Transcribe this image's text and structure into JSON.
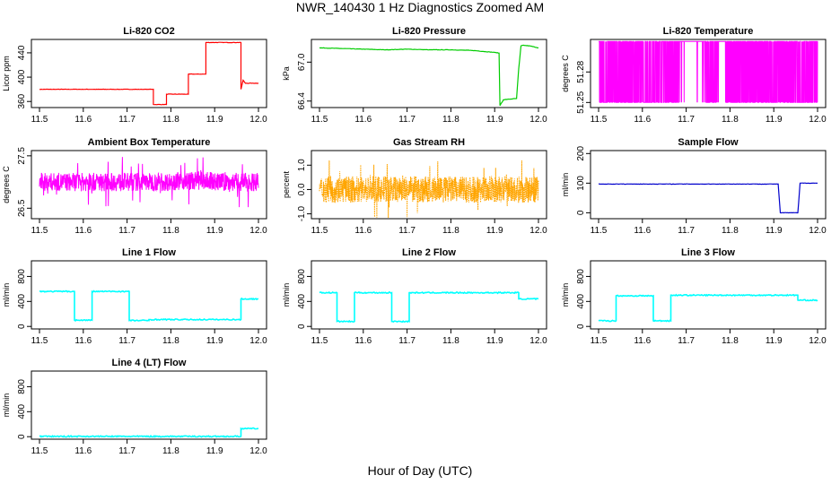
{
  "page": {
    "title": "NWR_140430  1 Hz Diagnostics Zoomed AM",
    "xlabel": "Hour of Day (UTC)"
  },
  "chart_data": [
    {
      "type": "line",
      "title": "Li-820 CO2",
      "ylabel": "Licor ppm",
      "xlim": [
        11.5,
        12.0
      ],
      "ylim": [
        350,
        462
      ],
      "xticks": [
        "11.5",
        "11.6",
        "11.7",
        "11.8",
        "11.9",
        "12.0"
      ],
      "yticks": [
        "360",
        "400",
        "440"
      ],
      "color": "#ff0000",
      "series": [
        {
          "x": [
            11.5,
            11.76,
            11.76,
            11.79,
            11.79,
            11.84,
            11.84,
            11.88,
            11.88,
            11.96,
            11.96,
            11.965,
            11.97,
            12.0
          ],
          "y": [
            380,
            380,
            355,
            355,
            372,
            372,
            405,
            405,
            457,
            457,
            380,
            395,
            390,
            390
          ]
        }
      ]
    },
    {
      "type": "line",
      "title": "Li-820 Pressure",
      "ylabel": "kPa",
      "xlim": [
        11.5,
        12.0
      ],
      "ylim": [
        66.3,
        67.35
      ],
      "xticks": [
        "11.5",
        "11.6",
        "11.7",
        "11.8",
        "11.9",
        "12.0"
      ],
      "yticks": [
        "66.4",
        "67.0"
      ],
      "color": "#00cc00",
      "series": [
        {
          "x": [
            11.5,
            11.55,
            11.6,
            11.65,
            11.7,
            11.75,
            11.8,
            11.85,
            11.9,
            11.91,
            11.912,
            11.92,
            11.95,
            11.955,
            11.96,
            11.965,
            11.98,
            12.0
          ],
          "y": [
            67.22,
            67.21,
            67.2,
            67.19,
            67.2,
            67.19,
            67.19,
            67.18,
            67.15,
            67.14,
            66.33,
            66.42,
            66.44,
            66.9,
            67.25,
            67.26,
            67.25,
            67.22
          ]
        }
      ]
    },
    {
      "type": "line",
      "title": "Li-820 Temperature",
      "ylabel": "degrees C",
      "xlim": [
        11.5,
        12.0
      ],
      "ylim": [
        51.245,
        51.312
      ],
      "xticks": [
        "11.5",
        "11.6",
        "11.7",
        "11.8",
        "11.9",
        "12.0"
      ],
      "yticks": [
        "51.25",
        "51.28"
      ],
      "color": "#ff00ff",
      "style": "toggle between 51.25 and 51.31 with steady 51.31 stretches",
      "series": [
        {
          "x": [
            11.5,
            12.0
          ],
          "y": [
            51.25,
            51.31
          ]
        }
      ]
    },
    {
      "type": "line",
      "title": "Ambient Box Temperature",
      "ylabel": "degrees C",
      "xlim": [
        11.5,
        12.0
      ],
      "ylim": [
        26.3,
        27.6
      ],
      "xticks": [
        "11.5",
        "11.6",
        "11.7",
        "11.8",
        "11.9",
        "12.0"
      ],
      "yticks": [
        "26.5",
        "27.5"
      ],
      "color": "#ff00ff",
      "style": "noisy around 27.0",
      "series": [
        {
          "x": [
            11.5,
            12.0
          ],
          "y": [
            27.0,
            27.0
          ]
        }
      ]
    },
    {
      "type": "scatter",
      "title": "Gas Stream RH",
      "ylabel": "percent",
      "xlim": [
        11.5,
        12.0
      ],
      "ylim": [
        -1.2,
        1.6
      ],
      "xticks": [
        "11.5",
        "11.6",
        "11.7",
        "11.8",
        "11.9",
        "12.0"
      ],
      "yticks": [
        "-1.0",
        "0.0",
        "1.0"
      ],
      "color": "#ffa500",
      "style": "dense noise around 0.0",
      "series": [
        {
          "x": [
            11.5,
            12.0
          ],
          "y": [
            0.0,
            0.0
          ]
        }
      ]
    },
    {
      "type": "line",
      "title": "Sample Flow",
      "ylabel": "ml/min",
      "xlim": [
        11.5,
        12.0
      ],
      "ylim": [
        -20,
        210
      ],
      "xticks": [
        "11.5",
        "11.6",
        "11.7",
        "11.8",
        "11.9",
        "12.0"
      ],
      "yticks": [
        "0",
        "100",
        "200"
      ],
      "color": "#0000cc",
      "series": [
        {
          "x": [
            11.5,
            11.91,
            11.915,
            11.955,
            11.96,
            12.0
          ],
          "y": [
            97,
            97,
            0,
            0,
            100,
            100
          ]
        }
      ]
    },
    {
      "type": "line",
      "title": "Line 1 Flow",
      "ylabel": "ml/min",
      "xlim": [
        11.5,
        12.0
      ],
      "ylim": [
        -40,
        1050
      ],
      "xticks": [
        "11.5",
        "11.6",
        "11.7",
        "11.8",
        "11.9",
        "12.0"
      ],
      "yticks": [
        "0",
        "400",
        "800"
      ],
      "color": "#00ffff",
      "series": [
        {
          "x": [
            11.5,
            11.58,
            11.58,
            11.62,
            11.62,
            11.705,
            11.705,
            11.75,
            11.75,
            11.96,
            11.96,
            12.0
          ],
          "y": [
            560,
            560,
            100,
            100,
            560,
            560,
            95,
            95,
            110,
            110,
            440,
            440
          ]
        }
      ]
    },
    {
      "type": "line",
      "title": "Line 2 Flow",
      "ylabel": "ml/min",
      "xlim": [
        11.5,
        12.0
      ],
      "ylim": [
        -40,
        1050
      ],
      "xticks": [
        "11.5",
        "11.6",
        "11.7",
        "11.8",
        "11.9",
        "12.0"
      ],
      "yticks": [
        "0",
        "400",
        "800"
      ],
      "color": "#00ffff",
      "series": [
        {
          "x": [
            11.5,
            11.54,
            11.54,
            11.58,
            11.58,
            11.665,
            11.665,
            11.705,
            11.705,
            11.955,
            11.955,
            12.0
          ],
          "y": [
            540,
            540,
            80,
            80,
            540,
            540,
            80,
            80,
            540,
            540,
            440,
            440
          ]
        }
      ]
    },
    {
      "type": "line",
      "title": "Line 3 Flow",
      "ylabel": "ml/min",
      "xlim": [
        11.5,
        12.0
      ],
      "ylim": [
        -40,
        1050
      ],
      "xticks": [
        "11.5",
        "11.6",
        "11.7",
        "11.8",
        "11.9",
        "12.0"
      ],
      "yticks": [
        "0",
        "400",
        "800"
      ],
      "color": "#00ffff",
      "series": [
        {
          "x": [
            11.5,
            11.54,
            11.54,
            11.625,
            11.625,
            11.665,
            11.665,
            11.955,
            11.955,
            12.0
          ],
          "y": [
            90,
            90,
            490,
            490,
            90,
            90,
            500,
            500,
            420,
            420
          ]
        }
      ]
    },
    {
      "type": "line",
      "title": "Line 4 (LT) Flow",
      "ylabel": "ml/min",
      "xlim": [
        11.5,
        12.0
      ],
      "ylim": [
        -40,
        1050
      ],
      "xticks": [
        "11.5",
        "11.6",
        "11.7",
        "11.8",
        "11.9",
        "12.0"
      ],
      "yticks": [
        "0",
        "400",
        "800"
      ],
      "color": "#00ffff",
      "series": [
        {
          "x": [
            11.5,
            11.96,
            11.96,
            12.0
          ],
          "y": [
            5,
            5,
            130,
            130
          ]
        }
      ]
    }
  ]
}
